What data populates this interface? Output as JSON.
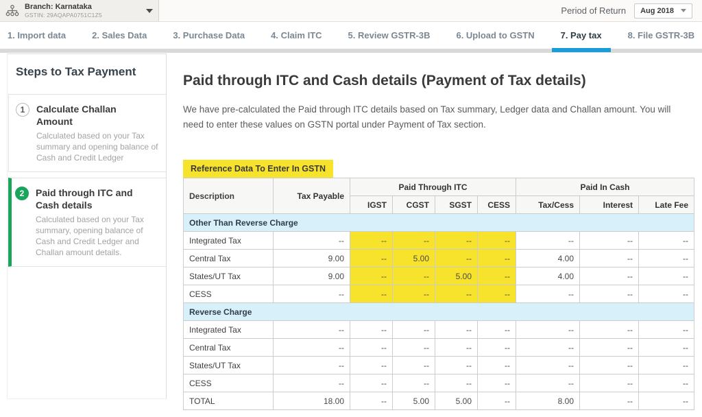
{
  "header": {
    "branch_label": "Branch: Karnataka",
    "gstin": "GSTIN: 29AQAPA0751C1Z5",
    "period_label": "Period of Return",
    "period_value": "Aug 2018"
  },
  "tabs": [
    {
      "label": "1. Import data",
      "active": false
    },
    {
      "label": "2. Sales Data",
      "active": false
    },
    {
      "label": "3. Purchase Data",
      "active": false
    },
    {
      "label": "4. Claim ITC",
      "active": false
    },
    {
      "label": "5. Review GSTR-3B",
      "active": false
    },
    {
      "label": "6. Upload to GSTN",
      "active": false
    },
    {
      "label": "7. Pay tax",
      "active": true
    },
    {
      "label": "8. File GSTR-3B",
      "active": false
    }
  ],
  "sidebar": {
    "title": "Steps to Tax Payment",
    "steps": [
      {
        "num": "1",
        "title": "Calculate Challan Amount",
        "desc": "Calculated based on your Tax summary and opening balance of Cash and Credit Ledger",
        "active": false
      },
      {
        "num": "2",
        "title": "Paid through ITC and Cash details",
        "desc": "Calculated based on your Tax summary, opening balance of Cash and Credit Ledger and Challan amount details.",
        "active": true
      }
    ]
  },
  "main": {
    "title": "Paid through ITC and Cash details (Payment of Tax details)",
    "description": "We have pre-calculated the Paid through ITC details based on Tax summary, Ledger data and Challan amount. You will need to enter these values on GSTN portal under Payment of Tax section.",
    "badge": "Reference Data To Enter In GSTN"
  },
  "table": {
    "column_headers": {
      "description": "Description",
      "tax_payable": "Tax Payable",
      "paid_through_itc": "Paid Through ITC",
      "paid_in_cash": "Paid In Cash",
      "itc_columns": [
        "IGST",
        "CGST",
        "SGST",
        "CESS"
      ],
      "cash_columns": [
        "Tax/Cess",
        "Interest",
        "Late Fee"
      ]
    },
    "sections": [
      {
        "title": "Other Than Reverse Charge",
        "highlight_itc": true,
        "rows": [
          {
            "label": "Integrated Tax",
            "values": [
              "--",
              "--",
              "--",
              "--",
              "--",
              "--",
              "--",
              "--"
            ]
          },
          {
            "label": "Central Tax",
            "values": [
              "9.00",
              "--",
              "5.00",
              "--",
              "--",
              "4.00",
              "--",
              "--"
            ]
          },
          {
            "label": "States/UT Tax",
            "values": [
              "9.00",
              "--",
              "--",
              "5.00",
              "--",
              "4.00",
              "--",
              "--"
            ]
          },
          {
            "label": "CESS",
            "values": [
              "--",
              "--",
              "--",
              "--",
              "--",
              "--",
              "--",
              "--"
            ]
          }
        ]
      },
      {
        "title": "Reverse Charge",
        "highlight_itc": false,
        "rows": [
          {
            "label": "Integrated Tax",
            "values": [
              "--",
              "--",
              "--",
              "--",
              "--",
              "--",
              "--",
              "--"
            ]
          },
          {
            "label": "Central Tax",
            "values": [
              "--",
              "--",
              "--",
              "--",
              "--",
              "--",
              "--",
              "--"
            ]
          },
          {
            "label": "States/UT Tax",
            "values": [
              "--",
              "--",
              "--",
              "--",
              "--",
              "--",
              "--",
              "--"
            ]
          },
          {
            "label": "CESS",
            "values": [
              "--",
              "--",
              "--",
              "--",
              "--",
              "--",
              "--",
              "--"
            ]
          }
        ]
      }
    ],
    "total_row": {
      "label": "TOTAL",
      "values": [
        "18.00",
        "--",
        "5.00",
        "5.00",
        "--",
        "8.00",
        "--",
        "--"
      ]
    }
  },
  "colors": {
    "highlight_yellow": "#f8e32c",
    "section_blue": "#d7f0fa",
    "active_green": "#1ba45c",
    "tab_active_blue": "#1a9cd8",
    "band_gray": "#d9d9d9"
  }
}
